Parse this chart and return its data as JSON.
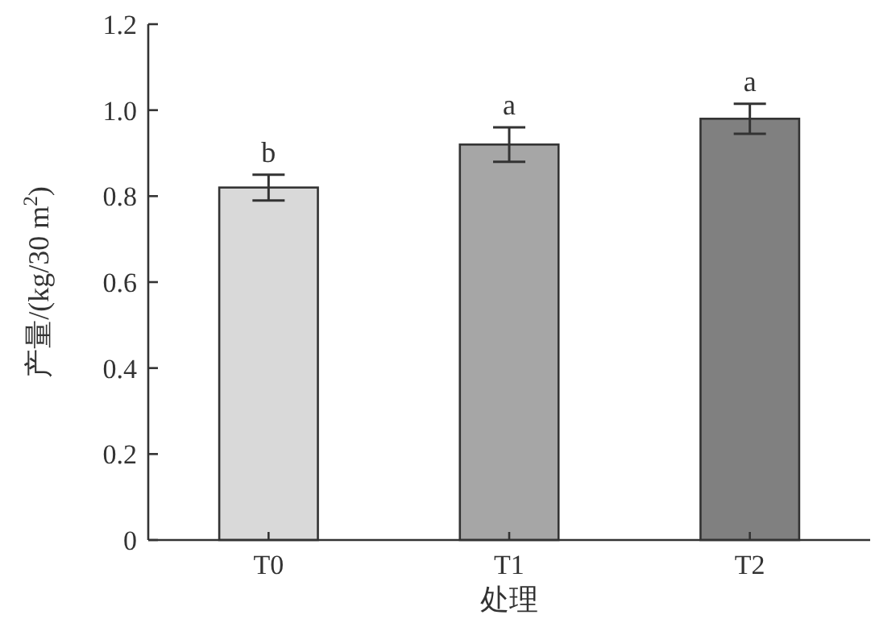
{
  "chart_data": {
    "type": "bar",
    "xlabel": "处理",
    "ylabel": "产量/(kg/30 m$^{2}$)",
    "categories": [
      "T0",
      "T1",
      "T2"
    ],
    "values": [
      0.82,
      0.92,
      0.98
    ],
    "errors": [
      0.03,
      0.04,
      0.035
    ],
    "colors": [
      "#d9d9d9",
      "#a6a6a6",
      "#808080"
    ],
    "ylim": [
      0,
      1.2
    ],
    "yticks": [
      0,
      0.2,
      0.4,
      0.6,
      0.8,
      {
        "value": 1,
        "label": "1.0"
      },
      1.2
    ],
    "annotations": [
      "b",
      "a",
      "a"
    ]
  }
}
